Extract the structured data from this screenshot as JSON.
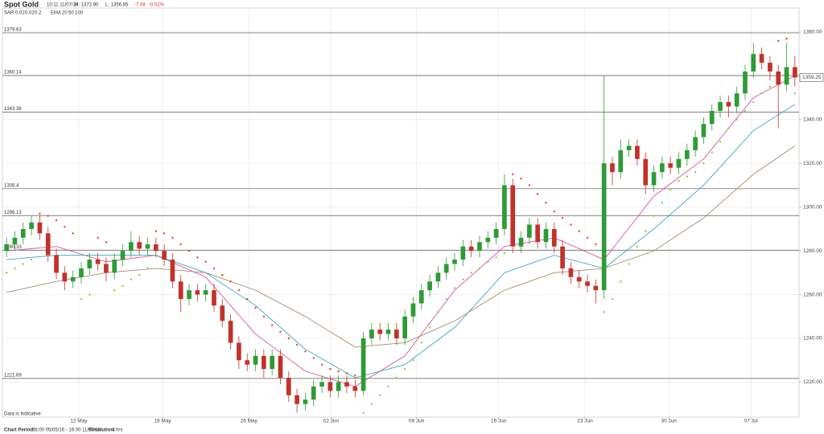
{
  "header": {
    "title": "Spot Gold",
    "time": "10:11 11/07/16",
    "high": "H: 1372.90",
    "low": "L: 1356.85",
    "change": "-7.08",
    "change_pct": "-0.52%"
  },
  "indicators": {
    "sar_label": "SAR",
    "sar_params": [
      "0.02",
      "0.02",
      "0.2"
    ],
    "ema_label": "EMA"
  },
  "footer": {
    "period_label": "Chart Period:",
    "period": "08:00 05/05/16 - 16:00 11/07/16",
    "resolution_label": "Resolution:",
    "resolution": "4 hrs"
  },
  "chart_data": {
    "type": "candlestick",
    "note": "Data is Indicative",
    "open": [
      1280,
      1283,
      1286,
      1290,
      1293,
      1288,
      1278,
      1270,
      1266,
      1268,
      1272,
      1276,
      1274,
      1270,
      1276,
      1280,
      1284,
      1281,
      1283,
      1280,
      1276,
      1266,
      1258,
      1262,
      1260,
      1262,
      1255,
      1248,
      1238,
      1230,
      1228,
      1232,
      1226,
      1232,
      1222,
      1214,
      1210,
      1212,
      1218,
      1220,
      1216,
      1220,
      1218,
      1216,
      1240,
      1244,
      1242,
      1244,
      1240,
      1250,
      1256,
      1262,
      1266,
      1270,
      1274,
      1276,
      1282,
      1280,
      1284,
      1286,
      1290,
      1310,
      1282,
      1286,
      1292,
      1284,
      1290,
      1282,
      1272,
      1268,
      1266,
      1264,
      1262,
      1320,
      1316,
      1326,
      1328,
      1322,
      1310,
      1316,
      1320,
      1318,
      1322,
      1326,
      1332,
      1338,
      1344,
      1348,
      1346,
      1352,
      1362,
      1370,
      1366,
      1362,
      1356,
      1364
    ],
    "high": [
      1286,
      1289,
      1293,
      1296,
      1296,
      1291,
      1281,
      1273,
      1271,
      1275,
      1279,
      1279,
      1277,
      1279,
      1283,
      1289,
      1287,
      1286,
      1286,
      1283,
      1279,
      1269,
      1265,
      1265,
      1265,
      1265,
      1258,
      1251,
      1241,
      1233,
      1235,
      1235,
      1235,
      1235,
      1225,
      1217,
      1215,
      1221,
      1223,
      1223,
      1223,
      1223,
      1221,
      1243,
      1247,
      1247,
      1247,
      1247,
      1253,
      1259,
      1265,
      1269,
      1273,
      1277,
      1279,
      1285,
      1285,
      1287,
      1289,
      1293,
      1315,
      1313,
      1289,
      1295,
      1295,
      1293,
      1293,
      1285,
      1275,
      1271,
      1269,
      1267,
      1360,
      1323,
      1331,
      1331,
      1331,
      1325,
      1319,
      1323,
      1323,
      1325,
      1329,
      1335,
      1341,
      1347,
      1351,
      1351,
      1355,
      1365,
      1375,
      1373,
      1369,
      1365,
      1375,
      1369
    ],
    "low": [
      1277,
      1280,
      1283,
      1287,
      1285,
      1275,
      1267,
      1262,
      1263,
      1265,
      1269,
      1271,
      1266,
      1267,
      1273,
      1277,
      1278,
      1278,
      1277,
      1273,
      1263,
      1252,
      1255,
      1257,
      1257,
      1252,
      1245,
      1235,
      1226,
      1225,
      1225,
      1222,
      1223,
      1219,
      1211,
      1206,
      1207,
      1209,
      1215,
      1213,
      1213,
      1215,
      1213,
      1214,
      1237,
      1239,
      1239,
      1237,
      1237,
      1247,
      1253,
      1259,
      1263,
      1267,
      1271,
      1273,
      1277,
      1277,
      1281,
      1283,
      1287,
      1279,
      1279,
      1283,
      1281,
      1281,
      1279,
      1269,
      1265,
      1263,
      1261,
      1256,
      1258,
      1310,
      1313,
      1323,
      1319,
      1306,
      1307,
      1313,
      1315,
      1315,
      1319,
      1323,
      1329,
      1335,
      1341,
      1341,
      1343,
      1349,
      1359,
      1363,
      1358,
      1336,
      1353,
      1355
    ],
    "close": [
      1283,
      1286,
      1290,
      1293,
      1288,
      1278,
      1270,
      1266,
      1268,
      1272,
      1276,
      1274,
      1270,
      1276,
      1280,
      1284,
      1281,
      1283,
      1280,
      1276,
      1266,
      1258,
      1262,
      1260,
      1262,
      1255,
      1248,
      1238,
      1230,
      1228,
      1232,
      1226,
      1232,
      1222,
      1214,
      1210,
      1212,
      1218,
      1220,
      1216,
      1220,
      1218,
      1216,
      1240,
      1244,
      1242,
      1244,
      1240,
      1250,
      1256,
      1262,
      1266,
      1270,
      1274,
      1276,
      1282,
      1280,
      1284,
      1286,
      1290,
      1310,
      1282,
      1286,
      1292,
      1284,
      1290,
      1282,
      1272,
      1268,
      1266,
      1264,
      1262,
      1320,
      1316,
      1326,
      1328,
      1322,
      1310,
      1316,
      1320,
      1318,
      1322,
      1326,
      1332,
      1338,
      1344,
      1348,
      1346,
      1352,
      1362,
      1370,
      1366,
      1362,
      1356,
      1364,
      1359.25
    ],
    "colors": {
      "up": "#2f9a36",
      "down": "#c1322b"
    },
    "sar": {
      "values": [
        1270,
        1272,
        1274,
        1276,
        1297,
        1296,
        1294,
        1291,
        1288,
        1258,
        1260,
        1286,
        1284,
        1262,
        1264,
        1267,
        1269,
        1272,
        1289,
        1288,
        1286,
        1283,
        1280,
        1277,
        1275,
        1272,
        1269,
        1266,
        1262,
        1258,
        1254,
        1250,
        1246,
        1243,
        1240,
        1237,
        1234,
        1231,
        1228,
        1226,
        1225,
        1224,
        1223,
        1206,
        1210,
        1214,
        1218,
        1222,
        1226,
        1230,
        1238,
        1245,
        1252,
        1258,
        1263,
        1267,
        1270,
        1272,
        1275,
        1277,
        1279,
        1315,
        1313,
        1310,
        1306,
        1302,
        1298,
        1295,
        1292,
        1289,
        1286,
        1283,
        1252,
        1258,
        1266,
        1274,
        1282,
        1289,
        1296,
        1302,
        1308,
        1312,
        1314,
        1316,
        1320,
        1325,
        1330,
        1336,
        1340,
        1344,
        1348,
        1352,
        1355,
        1376,
        1377,
        1352
      ],
      "colors": {
        "above": "#e8432b",
        "below": "#86cf35"
      }
    },
    "series": [
      {
        "name": "20",
        "color": "#d9559c",
        "x": [
          0,
          6,
          12,
          18,
          24,
          30,
          36,
          42,
          48,
          54,
          60,
          66,
          72,
          78,
          84,
          90,
          95
        ],
        "values": [
          1280,
          1282,
          1275,
          1278,
          1268,
          1242,
          1225,
          1218,
          1232,
          1262,
          1282,
          1286,
          1276,
          1305,
          1322,
          1350,
          1360
        ]
      },
      {
        "name": "50",
        "color": "#3fa6c4",
        "x": [
          0,
          6,
          12,
          18,
          24,
          30,
          36,
          42,
          48,
          54,
          60,
          66,
          72,
          78,
          84,
          90,
          95
        ],
        "values": [
          1276,
          1278,
          1278,
          1278,
          1270,
          1255,
          1235,
          1222,
          1228,
          1245,
          1270,
          1278,
          1272,
          1290,
          1310,
          1335,
          1347
        ]
      },
      {
        "name": "100",
        "color": "#a48c6c",
        "x": [
          0,
          6,
          12,
          18,
          24,
          30,
          36,
          42,
          48,
          54,
          60,
          66,
          72,
          78,
          84,
          90,
          95
        ],
        "values": [
          1261,
          1266,
          1270,
          1272,
          1270,
          1262,
          1250,
          1236,
          1238,
          1248,
          1262,
          1270,
          1272,
          1280,
          1295,
          1315,
          1328
        ]
      }
    ],
    "levels": [
      1379.63,
      1360.14,
      1343.38,
      1308.4,
      1296.13,
      1280.33,
      1221.69
    ],
    "xlim": [
      0,
      96
    ],
    "xticks": [
      {
        "value": 9.2,
        "label": "12 May"
      },
      {
        "value": 19.3,
        "label": "19 May"
      },
      {
        "value": 29.7,
        "label": "26 May"
      },
      {
        "value": 39.6,
        "label": "02 Jun"
      },
      {
        "value": 49.9,
        "label": "09 Jun"
      },
      {
        "value": 59.8,
        "label": "16 Jun"
      },
      {
        "value": 70.2,
        "label": "23 Jun"
      },
      {
        "value": 80.3,
        "label": "30 Jun"
      },
      {
        "value": 90.2,
        "label": "07 Jul"
      }
    ],
    "ylim": [
      1204,
      1391
    ],
    "yticks": [
      {
        "value": 1220,
        "label": "1220.00"
      },
      {
        "value": 1240,
        "label": "1240.00"
      },
      {
        "value": 1260,
        "label": "1260.00"
      },
      {
        "value": 1280,
        "label": "1280.00"
      },
      {
        "value": 1300,
        "label": "1300.00"
      },
      {
        "value": 1320,
        "label": "1320.00"
      },
      {
        "value": 1340,
        "label": "1340.00"
      },
      {
        "value": 1360,
        "label": "1360.00"
      },
      {
        "value": 1380,
        "label": "1380.00"
      }
    ],
    "grid": true
  }
}
